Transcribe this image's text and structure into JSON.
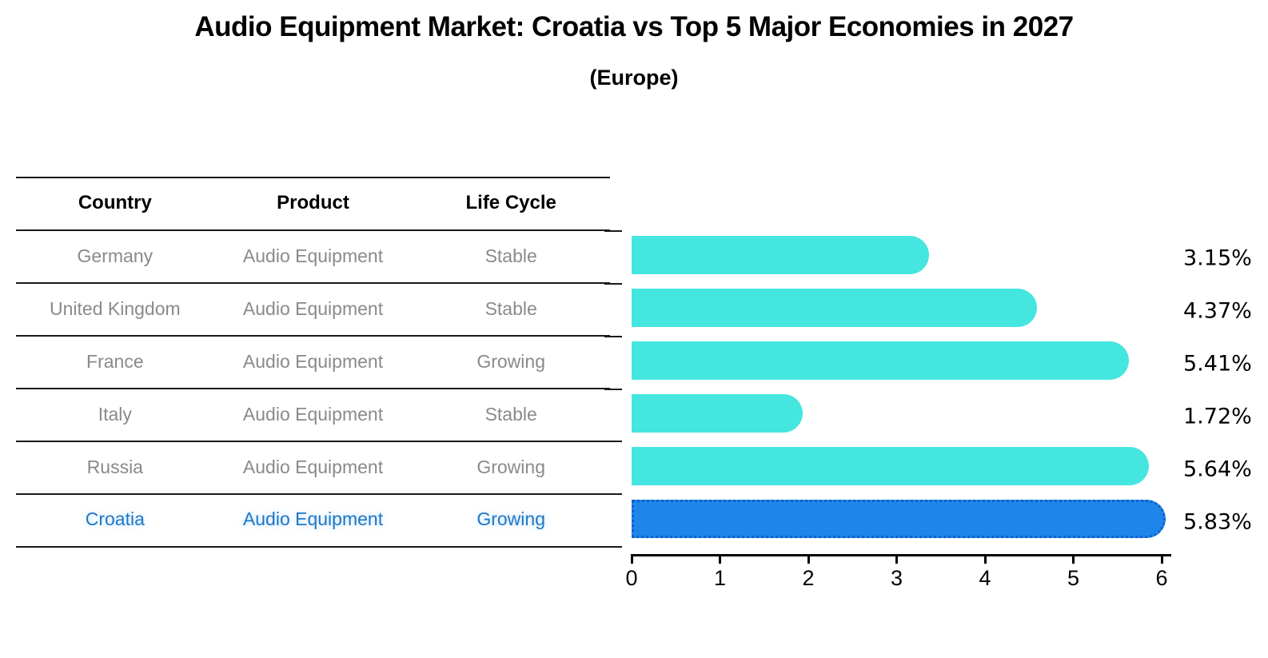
{
  "title": "Audio Equipment Market: Croatia vs Top 5 Major Economies in 2027",
  "subtitle": "(Europe)",
  "table": {
    "headers": {
      "country": "Country",
      "product": "Product",
      "life_cycle": "Life Cycle"
    },
    "rows": [
      {
        "country": "Germany",
        "product": "Audio Equipment",
        "life_cycle": "Stable",
        "highlighted": false
      },
      {
        "country": "United Kingdom",
        "product": "Audio Equipment",
        "life_cycle": "Stable",
        "highlighted": false
      },
      {
        "country": "France",
        "product": "Audio Equipment",
        "life_cycle": "Growing",
        "highlighted": false
      },
      {
        "country": "Italy",
        "product": "Audio Equipment",
        "life_cycle": "Stable",
        "highlighted": false
      },
      {
        "country": "Russia",
        "product": "Audio Equipment",
        "life_cycle": "Growing",
        "highlighted": false
      },
      {
        "country": "Croatia",
        "product": "Audio Equipment",
        "life_cycle": "Growing",
        "highlighted": true
      }
    ]
  },
  "chart_data": {
    "type": "bar",
    "orientation": "horizontal",
    "categories": [
      "Germany",
      "United Kingdom",
      "France",
      "Italy",
      "Russia",
      "Croatia"
    ],
    "values": [
      3.15,
      4.37,
      5.41,
      1.72,
      5.64,
      5.83
    ],
    "value_labels": [
      "3.15%",
      "4.37%",
      "5.41%",
      "1.72%",
      "5.64%",
      "5.83%"
    ],
    "title": "Audio Equipment Market: Croatia vs Top 5 Major Economies in 2027 (Europe)",
    "xlabel": "",
    "ylabel": "",
    "xlim": [
      0,
      6.1
    ],
    "x_ticks": [
      0,
      1,
      2,
      3,
      4,
      5,
      6
    ],
    "grid": false,
    "legend": "none",
    "bar_color": "#45E6E0",
    "highlight_index": 5,
    "highlight_color": "#1E86E8",
    "highlight_border_color": "#1060CC",
    "value_label_color": "#000000"
  },
  "colors": {
    "row_text": "#8a8a8a",
    "highlight_text": "#1f77c4",
    "header_text": "#000000",
    "line": "#1a1a1a"
  }
}
